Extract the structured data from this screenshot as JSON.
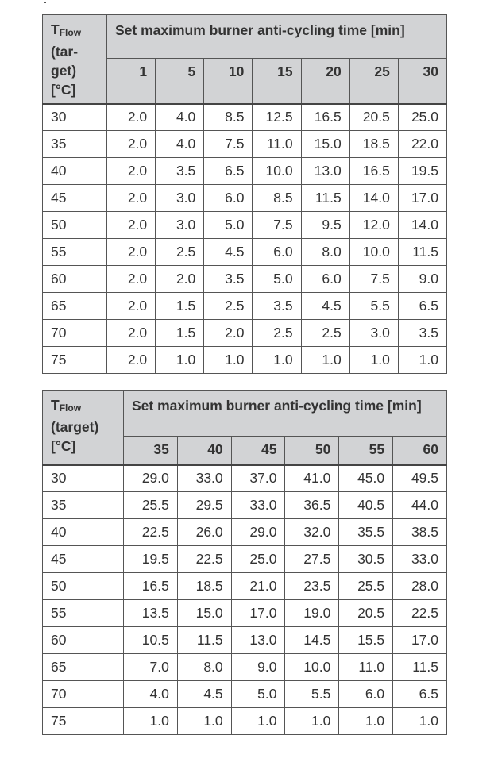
{
  "tables": [
    {
      "corner": {
        "symbol": "T",
        "subscript": "Flow",
        "label_lines": [
          "(tar-",
          "get)",
          "[°C]"
        ]
      },
      "title": "Set maximum burner anti-cycling time [min]",
      "columns": [
        "1",
        "5",
        "10",
        "15",
        "20",
        "25",
        "30"
      ],
      "rows": [
        {
          "t": "30",
          "values": [
            "2.0",
            "4.0",
            "8.5",
            "12.5",
            "16.5",
            "20.5",
            "25.0"
          ]
        },
        {
          "t": "35",
          "values": [
            "2.0",
            "4.0",
            "7.5",
            "11.0",
            "15.0",
            "18.5",
            "22.0"
          ]
        },
        {
          "t": "40",
          "values": [
            "2.0",
            "3.5",
            "6.5",
            "10.0",
            "13.0",
            "16.5",
            "19.5"
          ]
        },
        {
          "t": "45",
          "values": [
            "2.0",
            "3.0",
            "6.0",
            "8.5",
            "11.5",
            "14.0",
            "17.0"
          ]
        },
        {
          "t": "50",
          "values": [
            "2.0",
            "3.0",
            "5.0",
            "7.5",
            "9.5",
            "12.0",
            "14.0"
          ]
        },
        {
          "t": "55",
          "values": [
            "2.0",
            "2.5",
            "4.5",
            "6.0",
            "8.0",
            "10.0",
            "11.5"
          ]
        },
        {
          "t": "60",
          "values": [
            "2.0",
            "2.0",
            "3.5",
            "5.0",
            "6.0",
            "7.5",
            "9.0"
          ]
        },
        {
          "t": "65",
          "values": [
            "2.0",
            "1.5",
            "2.5",
            "3.5",
            "4.5",
            "5.5",
            "6.5"
          ]
        },
        {
          "t": "70",
          "values": [
            "2.0",
            "1.5",
            "2.0",
            "2.5",
            "2.5",
            "3.0",
            "3.5"
          ]
        },
        {
          "t": "75",
          "values": [
            "2.0",
            "1.0",
            "1.0",
            "1.0",
            "1.0",
            "1.0",
            "1.0"
          ]
        }
      ]
    },
    {
      "corner": {
        "symbol": "T",
        "subscript": "Flow",
        "label_lines": [
          "(target)",
          "[°C]"
        ]
      },
      "title": "Set maximum burner anti-cycling time [min]",
      "columns": [
        "35",
        "40",
        "45",
        "50",
        "55",
        "60"
      ],
      "rows": [
        {
          "t": "30",
          "values": [
            "29.0",
            "33.0",
            "37.0",
            "41.0",
            "45.0",
            "49.5"
          ]
        },
        {
          "t": "35",
          "values": [
            "25.5",
            "29.5",
            "33.0",
            "36.5",
            "40.5",
            "44.0"
          ]
        },
        {
          "t": "40",
          "values": [
            "22.5",
            "26.0",
            "29.0",
            "32.0",
            "35.5",
            "38.5"
          ]
        },
        {
          "t": "45",
          "values": [
            "19.5",
            "22.5",
            "25.0",
            "27.5",
            "30.5",
            "33.0"
          ]
        },
        {
          "t": "50",
          "values": [
            "16.5",
            "18.5",
            "21.0",
            "23.5",
            "25.5",
            "28.0"
          ]
        },
        {
          "t": "55",
          "values": [
            "13.5",
            "15.0",
            "17.0",
            "19.0",
            "20.5",
            "22.5"
          ]
        },
        {
          "t": "60",
          "values": [
            "10.5",
            "11.5",
            "13.0",
            "14.5",
            "15.5",
            "17.0"
          ]
        },
        {
          "t": "65",
          "values": [
            "7.0",
            "8.0",
            "9.0",
            "10.0",
            "11.0",
            "11.5"
          ]
        },
        {
          "t": "70",
          "values": [
            "4.0",
            "4.5",
            "5.0",
            "5.5",
            "6.0",
            "6.5"
          ]
        },
        {
          "t": "75",
          "values": [
            "1.0",
            "1.0",
            "1.0",
            "1.0",
            "1.0",
            "1.0"
          ]
        }
      ]
    }
  ]
}
